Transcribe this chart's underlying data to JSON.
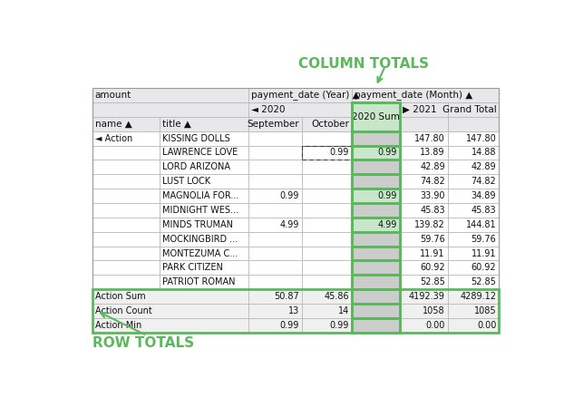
{
  "title_col": "COLUMN TOTALS",
  "title_row": "ROW TOTALS",
  "title_col_color": "#5cb85c",
  "title_row_color": "#5cb85c",
  "data_rows": [
    [
      "◄ Action",
      "KISSING DOLLS",
      "",
      "",
      "",
      "147.80",
      "147.80"
    ],
    [
      "",
      "LAWRENCE LOVE",
      "",
      "0.99",
      "0.99",
      "13.89",
      "14.88"
    ],
    [
      "",
      "LORD ARIZONA",
      "",
      "",
      "",
      "42.89",
      "42.89"
    ],
    [
      "",
      "LUST LOCK",
      "",
      "",
      "",
      "74.82",
      "74.82"
    ],
    [
      "",
      "MAGNOLIA FOR...",
      "0.99",
      "",
      "0.99",
      "33.90",
      "34.89"
    ],
    [
      "",
      "MIDNIGHT WES...",
      "",
      "",
      "",
      "45.83",
      "45.83"
    ],
    [
      "",
      "MINDS TRUMAN",
      "4.99",
      "",
      "4.99",
      "139.82",
      "144.81"
    ],
    [
      "",
      "MOCKINGBIRD ...",
      "",
      "",
      "",
      "59.76",
      "59.76"
    ],
    [
      "",
      "MONTEZUMA C...",
      "",
      "",
      "",
      "11.91",
      "11.91"
    ],
    [
      "",
      "PARK CITIZEN",
      "",
      "",
      "",
      "60.92",
      "60.92"
    ],
    [
      "",
      "PATRIOT ROMAN",
      "",
      "",
      "",
      "52.85",
      "52.85"
    ]
  ],
  "summary_rows": [
    [
      "Action Sum",
      "50.87",
      "45.86",
      "",
      "4192.39",
      "4289.12"
    ],
    [
      "Action Count",
      "13",
      "14",
      "",
      "1058",
      "1085"
    ],
    [
      "Action Min",
      "0.99",
      "0.99",
      "",
      "0.00",
      "0.00"
    ]
  ],
  "bg_white": "#ffffff",
  "bg_light_gray": "#e8e8eb",
  "bg_summary": "#f0f0f0",
  "bg_col_highlight": "#c8e6c9",
  "bg_col_highlight_empty": "#cccccc",
  "green": "#5cb85c",
  "border_gray": "#bbbbbb",
  "text_dark": "#111111",
  "figure_bg": "#ffffff"
}
